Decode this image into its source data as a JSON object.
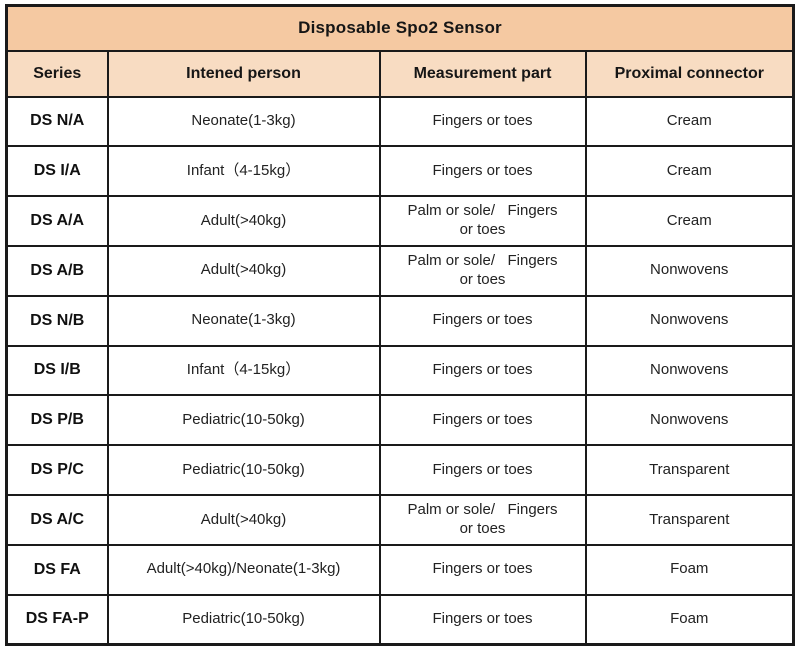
{
  "table": {
    "title": "Disposable Spo2 Sensor",
    "columns": [
      "Series",
      "Intened person",
      "Measurement part",
      "Proximal connector"
    ],
    "rows": [
      {
        "series": "DS N/A",
        "person": "Neonate(1-3kg)",
        "part": "Fingers or toes",
        "connector": "Cream"
      },
      {
        "series": "DS I/A",
        "person": "Infant（4-15kg）",
        "part": "Fingers or toes",
        "connector": "Cream"
      },
      {
        "series": "DS A/A",
        "person": "Adult(>40kg)",
        "part": "Palm or sole/   Fingers\nor toes",
        "connector": "Cream"
      },
      {
        "series": "DS A/B",
        "person": "Adult(>40kg)",
        "part": "Palm or sole/   Fingers\nor toes",
        "connector": "Nonwovens"
      },
      {
        "series": "DS N/B",
        "person": "Neonate(1-3kg)",
        "part": "Fingers or toes",
        "connector": "Nonwovens"
      },
      {
        "series": "DS I/B",
        "person": "Infant（4-15kg）",
        "part": "Fingers or toes",
        "connector": "Nonwovens"
      },
      {
        "series": "DS P/B",
        "person": "Pediatric(10-50kg)",
        "part": "Fingers or toes",
        "connector": "Nonwovens"
      },
      {
        "series": "DS P/C",
        "person": "Pediatric(10-50kg)",
        "part": "Fingers or toes",
        "connector": "Transparent"
      },
      {
        "series": "DS A/C",
        "person": "Adult(>40kg)",
        "part": "Palm or sole/   Fingers\nor toes",
        "connector": "Transparent"
      },
      {
        "series": "DS FA",
        "person": "Adult(>40kg)/Neonate(1-3kg)",
        "part": "Fingers or toes",
        "connector": "Foam"
      },
      {
        "series": "DS FA-P",
        "person": "Pediatric(10-50kg)",
        "part": "Fingers or toes",
        "connector": "Foam"
      }
    ],
    "colors": {
      "title_bg": "#f5c9a2",
      "header_bg": "#f8dcc2",
      "border": "#1a1a1a",
      "body_bg": "#ffffff",
      "text": "#161616"
    }
  }
}
